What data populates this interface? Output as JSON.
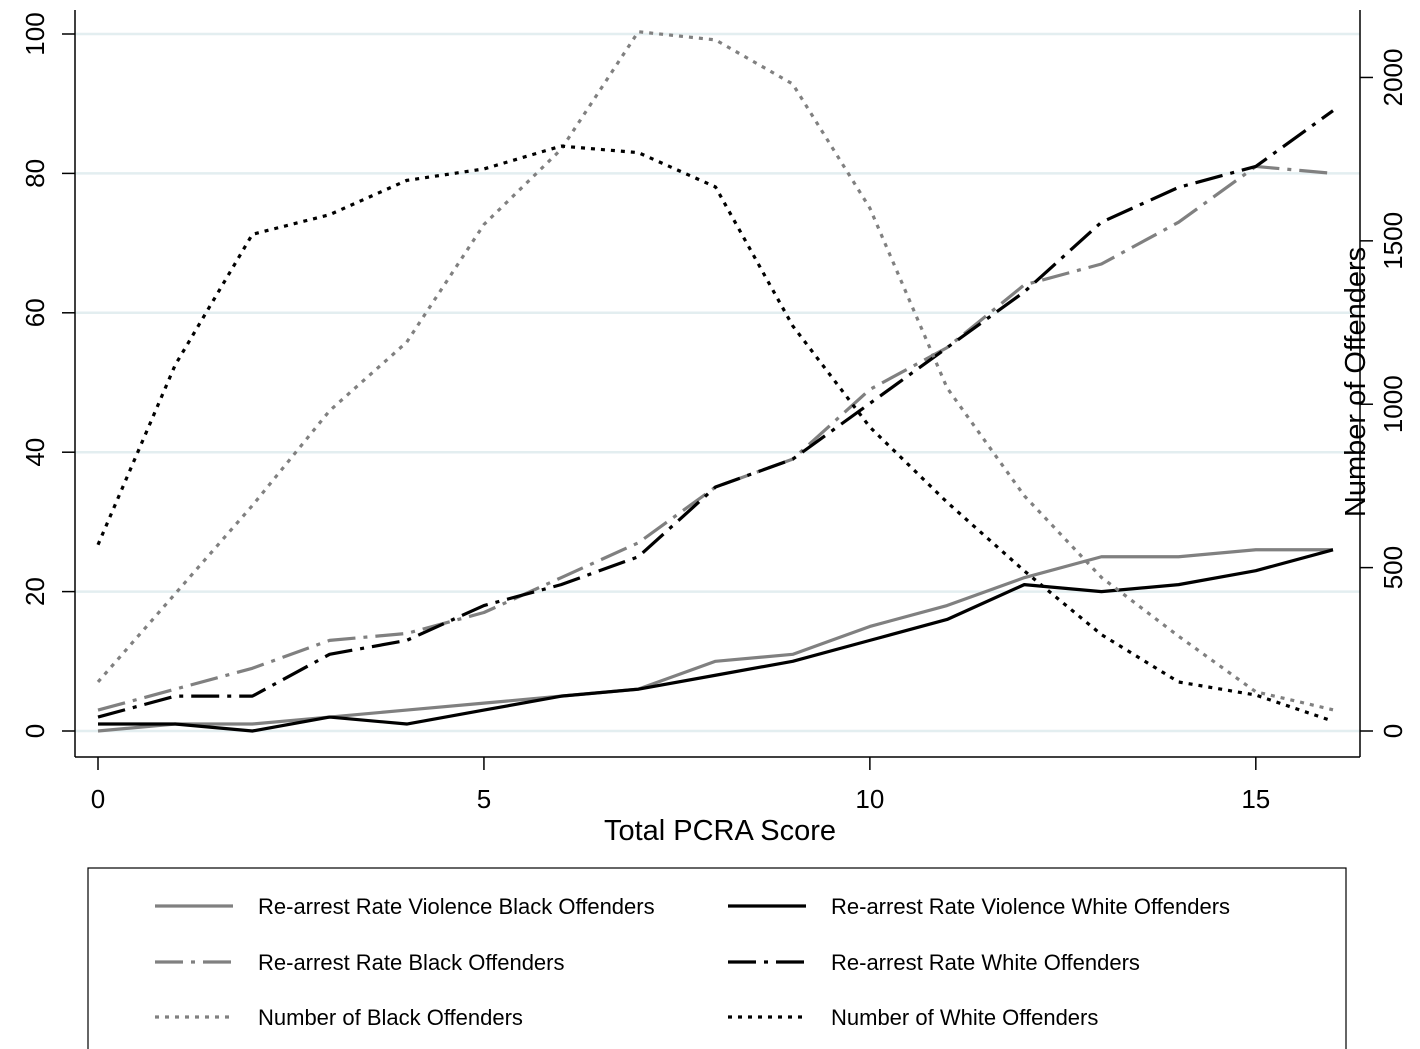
{
  "chart_data": {
    "type": "line",
    "title": "",
    "xlabel": "Total PCRA Score",
    "ylabel": "",
    "y2label": "Number of Offenders",
    "xlim": [
      0,
      16
    ],
    "ylim": [
      0,
      100
    ],
    "y2lim": [
      0,
      2133
    ],
    "xticks": [
      0,
      5,
      10,
      15
    ],
    "yticks": [
      0,
      20,
      40,
      60,
      80,
      100
    ],
    "y2ticks": [
      0,
      500,
      1000,
      1500,
      2000
    ],
    "grid": "horizontal",
    "legend_position": "bottom",
    "x": [
      0,
      1,
      2,
      3,
      4,
      5,
      6,
      7,
      8,
      9,
      10,
      11,
      12,
      13,
      14,
      15,
      16
    ],
    "series": [
      {
        "name": "Re-arrest Rate Violence Black Offenders",
        "axis": "left",
        "color": "#808080",
        "dash": "solid",
        "values": [
          0,
          1,
          1,
          2,
          3,
          4,
          5,
          6,
          10,
          11,
          15,
          18,
          22,
          25,
          25,
          26,
          26
        ]
      },
      {
        "name": "Re-arrest Rate Violence White Offenders",
        "axis": "left",
        "color": "#000000",
        "dash": "solid",
        "values": [
          1,
          1,
          0,
          2,
          1,
          3,
          5,
          6,
          8,
          10,
          13,
          16,
          21,
          20,
          21,
          23,
          26
        ]
      },
      {
        "name": "Re-arrest Rate Black Offenders",
        "axis": "left",
        "color": "#808080",
        "dash": "longdash",
        "values": [
          3,
          6,
          9,
          13,
          14,
          17,
          22,
          27,
          35,
          39,
          49,
          55,
          64,
          67,
          73,
          81,
          80
        ]
      },
      {
        "name": "Re-arrest Rate White Offenders",
        "axis": "left",
        "color": "#000000",
        "dash": "longdash",
        "values": [
          2,
          5,
          5,
          11,
          13,
          18,
          21,
          25,
          35,
          39,
          47,
          55,
          63,
          73,
          78,
          81,
          89
        ]
      },
      {
        "name": "Number of Black Offenders",
        "axis": "right",
        "color": "#808080",
        "dash": "dot",
        "values": [
          150,
          420,
          690,
          980,
          1190,
          1550,
          1780,
          2140,
          2115,
          1980,
          1600,
          1050,
          720,
          470,
          290,
          120,
          65
        ]
      },
      {
        "name": "Number of White Offenders",
        "axis": "right",
        "color": "#000000",
        "dash": "dot",
        "values": [
          570,
          1120,
          1520,
          1580,
          1685,
          1720,
          1790,
          1770,
          1665,
          1240,
          930,
          700,
          490,
          295,
          150,
          110,
          30
        ]
      }
    ]
  }
}
